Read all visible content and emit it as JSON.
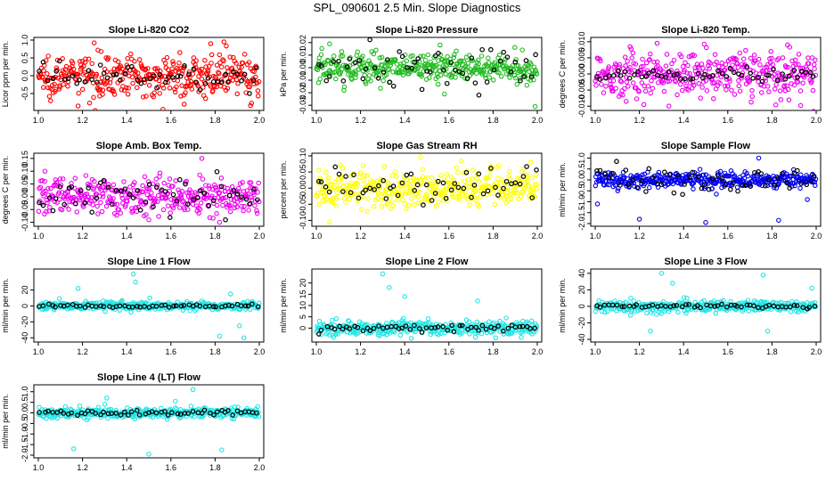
{
  "figure_title": "SPL_090601  2.5 Min. Slope Diagnostics",
  "chart_data": [
    {
      "id": "co2",
      "type": "scatter",
      "title": "Slope Li-820 CO2",
      "ylabel": "Licor ppm per min.",
      "color": "#ff0000",
      "xlim": [
        1.0,
        2.0
      ],
      "ylim": [
        -0.9,
        1.0
      ],
      "x_ticks": [
        "1.0",
        "1.2",
        "1.4",
        "1.6",
        "1.8",
        "2.0"
      ],
      "y_ticks": [
        {
          "v": -0.5,
          "t": "-0.5"
        },
        {
          "v": 0.0,
          "t": "0.0"
        },
        {
          "v": 0.5,
          "t": "0.5"
        },
        {
          "v": 1.0,
          "t": "1.0"
        }
      ],
      "spread": 0.28,
      "black_spread": 0.18,
      "outliers": [
        [
          1.18,
          -0.85
        ],
        [
          1.84,
          0.95
        ],
        [
          1.66,
          -0.8
        ],
        [
          1.27,
          0.72
        ],
        [
          1.78,
          0.9
        ],
        [
          1.96,
          -0.84
        ]
      ]
    },
    {
      "id": "pressure",
      "type": "scatter",
      "title": "Slope Li-820 Pressure",
      "ylabel": "kPa per min.",
      "color": "#22bb22",
      "xlim": [
        1.0,
        2.0
      ],
      "ylim": [
        -0.032,
        0.022
      ],
      "x_ticks": [
        "1.0",
        "1.2",
        "1.4",
        "1.6",
        "1.8",
        "2.0"
      ],
      "y_ticks": [
        {
          "v": -0.03,
          "t": "-0.03"
        },
        {
          "v": -0.02,
          "t": "-0.02"
        },
        {
          "v": -0.01,
          "t": "-0.01"
        },
        {
          "v": 0.0,
          "t": "0.00"
        },
        {
          "v": 0.01,
          "t": "0.01"
        },
        {
          "v": 0.02,
          "t": "0.02"
        }
      ],
      "spread": 0.006,
      "black_spread": 0.009,
      "outliers": [
        [
          1.06,
          0.019
        ],
        [
          1.56,
          0.018
        ],
        [
          1.58,
          -0.021
        ],
        [
          1.27,
          0.014
        ],
        [
          1.99,
          -0.031
        ],
        [
          1.01,
          -0.012
        ]
      ]
    },
    {
      "id": "temp",
      "type": "scatter",
      "title": "Slope Li-820 Temp.",
      "ylabel": "degrees C per min.",
      "color": "#ee00ee",
      "xlim": [
        1.0,
        2.0
      ],
      "ylim": [
        -0.0105,
        0.0105
      ],
      "x_ticks": [
        "1.0",
        "1.2",
        "1.4",
        "1.6",
        "1.8",
        "2.0"
      ],
      "y_ticks": [
        {
          "v": -0.01,
          "t": "-0.010"
        },
        {
          "v": -0.005,
          "t": "-0.005"
        },
        {
          "v": 0.0,
          "t": "0.000"
        },
        {
          "v": 0.005,
          "t": "0.005"
        },
        {
          "v": 0.01,
          "t": "0.010"
        }
      ],
      "spread": 0.0035,
      "black_spread": 0.001,
      "outliers": [
        [
          1.22,
          -0.0095
        ],
        [
          1.28,
          0.0095
        ],
        [
          1.93,
          -0.0098
        ],
        [
          1.87,
          0.009
        ],
        [
          1.14,
          -0.0085
        ]
      ]
    },
    {
      "id": "boxtemp",
      "type": "scatter",
      "title": "Slope Amb. Box Temp.",
      "ylabel": "degrees C per min.",
      "color": "#ee00ee",
      "xlim": [
        1.0,
        2.0
      ],
      "ylim": [
        -0.105,
        0.16
      ],
      "x_ticks": [
        "1.0",
        "1.2",
        "1.4",
        "1.6",
        "1.8",
        "2.0"
      ],
      "y_ticks": [
        {
          "v": -0.1,
          "t": "-0.10"
        },
        {
          "v": -0.05,
          "t": "-0.05"
        },
        {
          "v": 0.0,
          "t": "0.00"
        },
        {
          "v": 0.05,
          "t": "0.05"
        },
        {
          "v": 0.1,
          "t": "0.10"
        },
        {
          "v": 0.15,
          "t": "0.15"
        }
      ],
      "spread": 0.035,
      "black_spread": 0.03,
      "outliers": [
        [
          1.74,
          0.15
        ],
        [
          1.03,
          0.1
        ],
        [
          1.82,
          -0.1
        ],
        [
          1.5,
          -0.09
        ]
      ]
    },
    {
      "id": "rh",
      "type": "scatter",
      "title": "Slope Gas Stream RH",
      "ylabel": "percent per min.",
      "color": "#ffff00",
      "xlim": [
        1.0,
        2.0
      ],
      "ylim": [
        -0.11,
        0.1
      ],
      "x_ticks": [
        "1.0",
        "1.2",
        "1.4",
        "1.6",
        "1.8",
        "2.0"
      ],
      "y_ticks": [
        {
          "v": -0.1,
          "t": "-0.10"
        },
        {
          "v": -0.05,
          "t": "-0.05"
        },
        {
          "v": 0.0,
          "t": "0.00"
        },
        {
          "v": 0.05,
          "t": "0.05"
        },
        {
          "v": 0.1,
          "t": "0.10"
        }
      ],
      "spread": 0.03,
      "black_spread": 0.025,
      "outliers": [
        [
          1.06,
          -0.105
        ],
        [
          1.97,
          0.08
        ]
      ]
    },
    {
      "id": "sample",
      "type": "scatter",
      "title": "Slope Sample Flow",
      "ylabel": "ml/min per min.",
      "color": "#0000ee",
      "xlim": [
        1.0,
        2.0
      ],
      "ylim": [
        -2.0,
        1.1
      ],
      "x_ticks": [
        "1.0",
        "1.2",
        "1.4",
        "1.6",
        "1.8",
        "2.0"
      ],
      "y_ticks": [
        {
          "v": -2.0,
          "t": "-2.0"
        },
        {
          "v": -1.5,
          "t": "-1.5"
        },
        {
          "v": -1.0,
          "t": "-1.0"
        },
        {
          "v": -0.5,
          "t": "-0.5"
        },
        {
          "v": 0.0,
          "t": "0.0"
        },
        {
          "v": 0.5,
          "t": "0.5"
        },
        {
          "v": 1.0,
          "t": "1.0"
        }
      ],
      "spread": 0.18,
      "black_spread": 0.3,
      "outliers": [
        [
          1.2,
          -1.8
        ],
        [
          1.5,
          -1.95
        ],
        [
          1.74,
          1.0
        ],
        [
          1.83,
          -1.85
        ],
        [
          1.01,
          -1.1
        ],
        [
          1.96,
          -0.9
        ]
      ]
    },
    {
      "id": "line1",
      "type": "scatter",
      "title": "Slope Line 1 Flow",
      "ylabel": "ml/min per min.",
      "color": "#22e5e5",
      "xlim": [
        1.0,
        2.0
      ],
      "ylim": [
        -42,
        43
      ],
      "x_ticks": [
        "1.0",
        "1.2",
        "1.4",
        "1.6",
        "1.8",
        "2.0"
      ],
      "y_ticks": [
        {
          "v": -40,
          "t": "-40"
        },
        {
          "v": -20,
          "t": "-20"
        },
        {
          "v": 0,
          "t": "0"
        },
        {
          "v": 20,
          "t": "20"
        }
      ],
      "spread": 2.5,
      "black_spread": 0.8,
      "outliers": [
        [
          1.43,
          40
        ],
        [
          1.18,
          22
        ],
        [
          1.82,
          -38
        ],
        [
          1.93,
          -40
        ],
        [
          1.87,
          15
        ],
        [
          1.44,
          30
        ],
        [
          1.91,
          -25
        ]
      ]
    },
    {
      "id": "line2",
      "type": "scatter",
      "title": "Slope Line 2 Flow",
      "ylabel": "ml/min per min.",
      "color": "#22e5e5",
      "xlim": [
        1.0,
        2.0
      ],
      "ylim": [
        -5,
        25
      ],
      "x_ticks": [
        "1.0",
        "1.2",
        "1.4",
        "1.6",
        "1.8",
        "2.0"
      ],
      "y_ticks": [
        {
          "v": 0,
          "t": "0"
        },
        {
          "v": 5,
          "t": "5"
        },
        {
          "v": 10,
          "t": "10"
        },
        {
          "v": 15,
          "t": "15"
        },
        {
          "v": 20,
          "t": "20"
        }
      ],
      "spread": 1.5,
      "black_spread": 0.8,
      "outliers": [
        [
          1.3,
          24
        ],
        [
          1.4,
          14
        ],
        [
          1.73,
          12
        ],
        [
          1.72,
          -4
        ],
        [
          1.33,
          18
        ],
        [
          1.28,
          -3
        ]
      ]
    },
    {
      "id": "line3",
      "type": "scatter",
      "title": "Slope Line 3 Flow",
      "ylabel": "ml/min per min.",
      "color": "#22e5e5",
      "xlim": [
        1.0,
        2.0
      ],
      "ylim": [
        -40,
        42
      ],
      "x_ticks": [
        "1.0",
        "1.2",
        "1.4",
        "1.6",
        "1.8",
        "2.0"
      ],
      "y_ticks": [
        {
          "v": -40,
          "t": "-40"
        },
        {
          "v": -20,
          "t": "-20"
        },
        {
          "v": 0,
          "t": "0"
        },
        {
          "v": 20,
          "t": "20"
        },
        {
          "v": 40,
          "t": "40"
        }
      ],
      "spread": 3.5,
      "black_spread": 1.2,
      "outliers": [
        [
          1.3,
          40
        ],
        [
          1.25,
          -30
        ],
        [
          1.76,
          38
        ],
        [
          1.78,
          -30
        ],
        [
          1.98,
          22
        ],
        [
          1.35,
          28
        ]
      ]
    },
    {
      "id": "line4",
      "type": "scatter",
      "title": "Slope Line 4 (LT) Flow",
      "ylabel": "ml/min per min.",
      "color": "#22e5e5",
      "xlim": [
        1.0,
        2.0
      ],
      "ylim": [
        -2.0,
        1.2
      ],
      "x_ticks": [
        "1.0",
        "1.2",
        "1.4",
        "1.6",
        "1.8",
        "2.0"
      ],
      "y_ticks": [
        {
          "v": -2.0,
          "t": "-2.0"
        },
        {
          "v": -1.5,
          "t": "-1.5"
        },
        {
          "v": -1.0,
          "t": "-1.0"
        },
        {
          "v": -0.5,
          "t": "-0.5"
        },
        {
          "v": 0.0,
          "t": "0.0"
        },
        {
          "v": 0.5,
          "t": "0.5"
        },
        {
          "v": 1.0,
          "t": "1.0"
        }
      ],
      "spread": 0.12,
      "black_spread": 0.06,
      "outliers": [
        [
          1.5,
          -1.95
        ],
        [
          1.7,
          1.1
        ],
        [
          1.16,
          -1.7
        ],
        [
          1.83,
          -1.75
        ],
        [
          1.31,
          0.7
        ],
        [
          1.62,
          0.55
        ]
      ]
    }
  ]
}
